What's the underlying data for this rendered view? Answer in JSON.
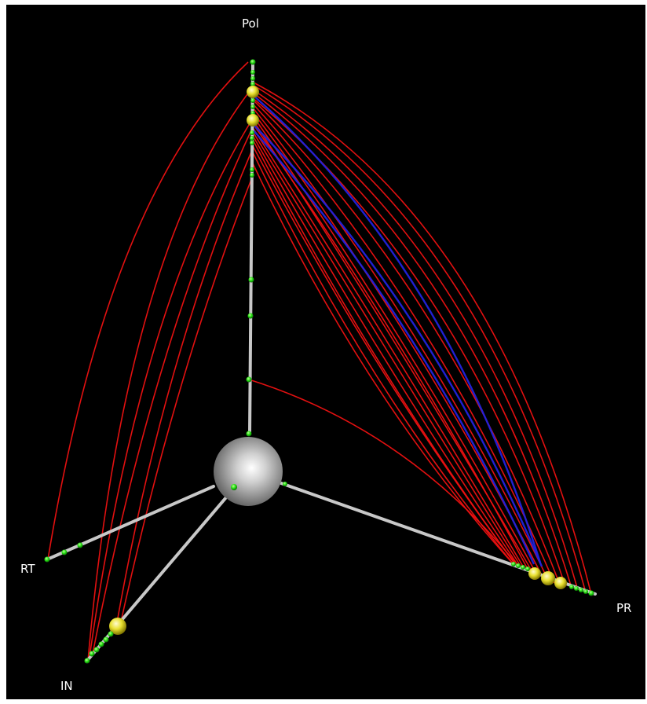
{
  "axes": [
    {
      "key": "pol",
      "label": "Pol"
    },
    {
      "key": "rt",
      "label": "RT"
    },
    {
      "key": "pr",
      "label": "PR"
    },
    {
      "key": "in",
      "label": "IN"
    }
  ],
  "colors": {
    "background": "#000000",
    "axis": "#c8c8c8",
    "node_small": "#22dd11",
    "node_large": "#e8e030",
    "edge_primary": "#ee1111",
    "edge_secondary": "#2222dd",
    "hub": "#bdbdbd"
  },
  "legend": "none"
}
